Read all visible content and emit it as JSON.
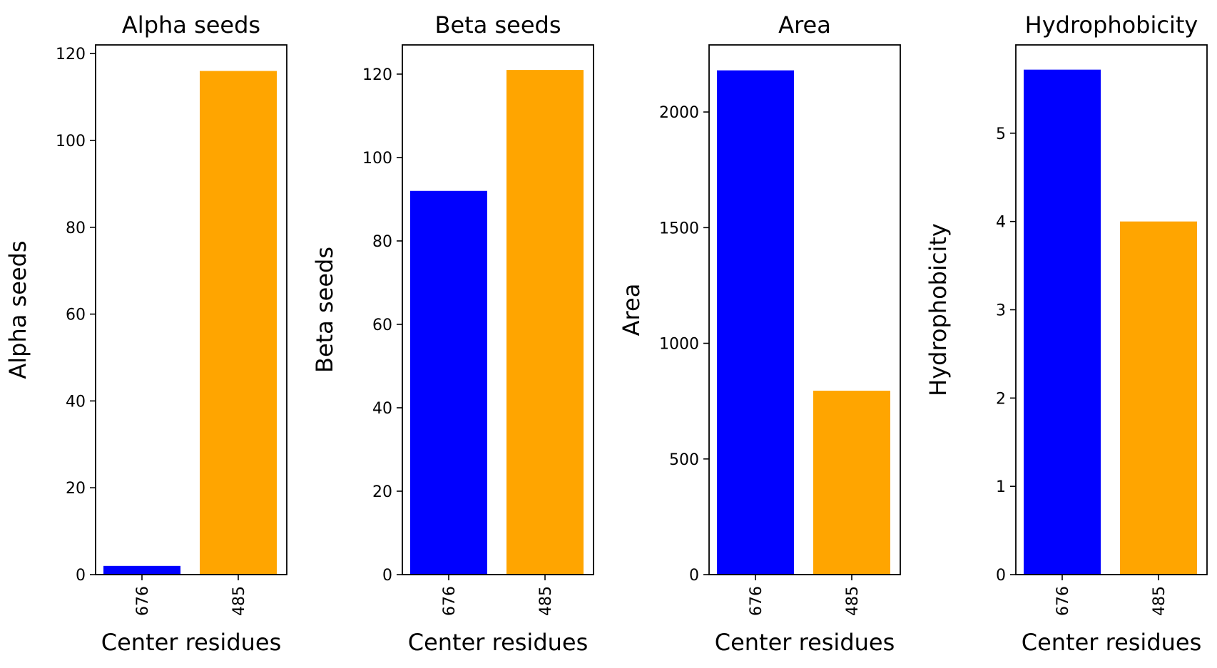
{
  "chart_data": [
    {
      "type": "bar",
      "title": "Alpha seeds",
      "xlabel": "Center residues",
      "ylabel": "Alpha seeds",
      "categories": [
        "676",
        "485"
      ],
      "values": [
        2,
        116
      ],
      "colors": [
        "#0000ff",
        "#ffa500"
      ],
      "ylim": [
        0,
        122
      ],
      "yticks": [
        0,
        20,
        40,
        60,
        80,
        100,
        120
      ],
      "grid": false
    },
    {
      "type": "bar",
      "title": "Beta seeds",
      "xlabel": "Center residues",
      "ylabel": "Beta seeds",
      "categories": [
        "676",
        "485"
      ],
      "values": [
        92,
        121
      ],
      "colors": [
        "#0000ff",
        "#ffa500"
      ],
      "ylim": [
        0,
        127
      ],
      "yticks": [
        0,
        20,
        40,
        60,
        80,
        100,
        120
      ],
      "grid": false
    },
    {
      "type": "bar",
      "title": "Area",
      "xlabel": "Center residues",
      "ylabel": "Area",
      "categories": [
        "676",
        "485"
      ],
      "values": [
        2180,
        795
      ],
      "colors": [
        "#0000ff",
        "#ffa500"
      ],
      "ylim": [
        0,
        2290
      ],
      "yticks": [
        0,
        500,
        1000,
        1500,
        2000
      ],
      "grid": false
    },
    {
      "type": "bar",
      "title": "Hydrophobicity",
      "xlabel": "Center residues",
      "ylabel": "Hydrophobicity",
      "categories": [
        "676",
        "485"
      ],
      "values": [
        5.72,
        4.0
      ],
      "colors": [
        "#0000ff",
        "#ffa500"
      ],
      "ylim": [
        0,
        6.0
      ],
      "yticks": [
        0,
        1,
        2,
        3,
        4,
        5
      ],
      "grid": false
    }
  ]
}
